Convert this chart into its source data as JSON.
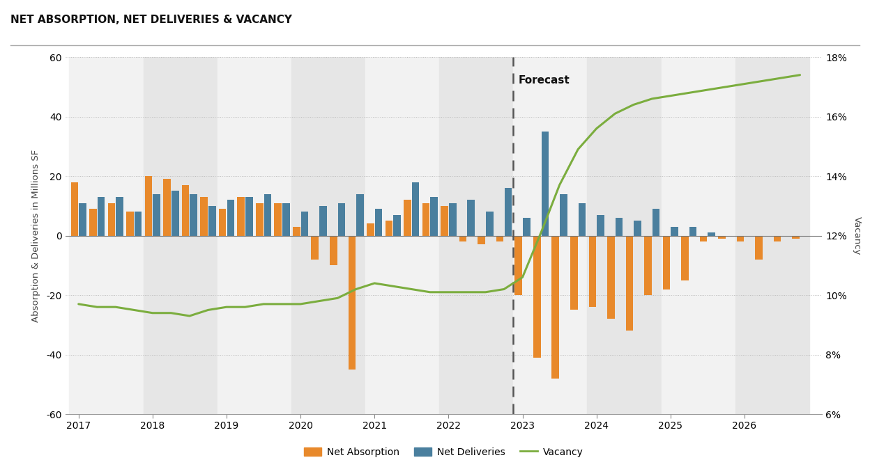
{
  "title": "NET ABSORPTION, NET DELIVERIES & VACANCY",
  "ylabel_left": "Absorption & Deliveries in Millions SF",
  "ylabel_right": "Vacancy",
  "ylim_left": [
    -60,
    60
  ],
  "ylim_right": [
    0.06,
    0.18
  ],
  "yticks_left": [
    -60,
    -40,
    -20,
    0,
    20,
    40,
    60
  ],
  "yticks_right": [
    0.06,
    0.08,
    0.1,
    0.12,
    0.14,
    0.16,
    0.18
  ],
  "forecast_x": 2022.875,
  "absorption_color": "#E8892B",
  "deliveries_color": "#4A7F9E",
  "vacancy_color": "#7BAD3E",
  "band_colors": [
    "#f2f2f2",
    "#e6e6e6"
  ],
  "x_values": [
    2017.0,
    2017.25,
    2017.5,
    2017.75,
    2018.0,
    2018.25,
    2018.5,
    2018.75,
    2019.0,
    2019.25,
    2019.5,
    2019.75,
    2020.0,
    2020.25,
    2020.5,
    2020.75,
    2021.0,
    2021.25,
    2021.5,
    2021.75,
    2022.0,
    2022.25,
    2022.5,
    2022.75,
    2023.0,
    2023.25,
    2023.5,
    2023.75,
    2024.0,
    2024.25,
    2024.5,
    2024.75,
    2025.0,
    2025.25,
    2025.5,
    2025.75,
    2026.0,
    2026.25,
    2026.5,
    2026.75
  ],
  "net_absorption": [
    18,
    9,
    11,
    8,
    20,
    19,
    17,
    13,
    9,
    13,
    11,
    11,
    3,
    -8,
    -10,
    -45,
    4,
    5,
    12,
    11,
    10,
    -2,
    -3,
    -2,
    -20,
    -41,
    -48,
    -25,
    -24,
    -28,
    -32,
    -20,
    -18,
    -15,
    -2,
    -1,
    -2,
    -8,
    -2,
    -1
  ],
  "net_deliveries": [
    11,
    13,
    13,
    8,
    14,
    15,
    14,
    10,
    12,
    13,
    14,
    11,
    8,
    10,
    11,
    14,
    9,
    7,
    18,
    13,
    11,
    12,
    8,
    16,
    6,
    35,
    14,
    11,
    7,
    6,
    5,
    9,
    3,
    3,
    1,
    0,
    0,
    0,
    0,
    0
  ],
  "vacancy_rate": [
    0.097,
    0.096,
    0.096,
    0.095,
    0.094,
    0.094,
    0.093,
    0.095,
    0.096,
    0.096,
    0.097,
    0.097,
    0.097,
    0.098,
    0.099,
    0.102,
    0.104,
    0.103,
    0.102,
    0.101,
    0.101,
    0.101,
    0.101,
    0.102,
    0.106,
    0.121,
    0.137,
    0.149,
    0.156,
    0.161,
    0.164,
    0.166,
    0.167,
    0.168,
    0.169,
    0.17,
    0.171,
    0.172,
    0.173,
    0.174
  ],
  "xtick_positions": [
    2017,
    2018,
    2019,
    2020,
    2021,
    2022,
    2023,
    2024,
    2025,
    2026
  ],
  "xtick_labels": [
    "2017",
    "2018",
    "2019",
    "2020",
    "2021",
    "2022",
    "2023",
    "2024",
    "2025",
    "2026"
  ]
}
